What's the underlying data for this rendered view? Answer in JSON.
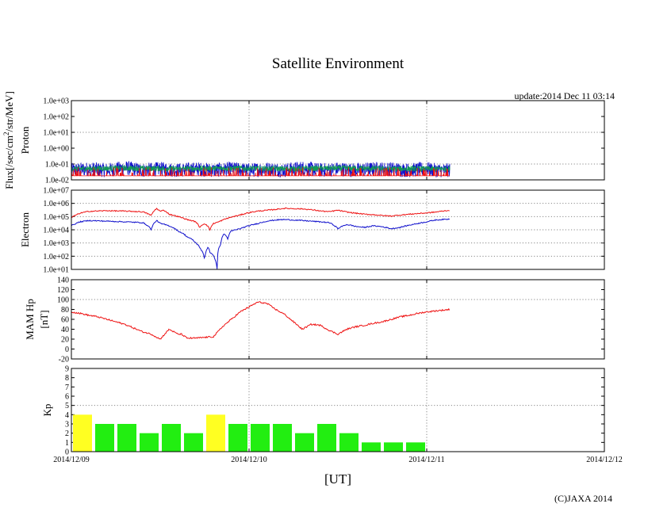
{
  "title": "Satellite Environment",
  "update_text": "update:2014 Dec 11 03:14",
  "copyright": "(C)JAXA 2014",
  "x_axis_title": "[UT]",
  "x_ticks": [
    "2014/12/09",
    "2014/12/10",
    "2014/12/11",
    "2014/12/12"
  ],
  "colors": {
    "red": "#ee1111",
    "blue": "#1111cc",
    "green": "#119955",
    "kp_yellow": "#ffff22",
    "kp_green": "#22ee11"
  },
  "chart_data": [
    {
      "type": "line",
      "panel": "proton",
      "ylabel_lines": [
        "Flux[/sec/cm²/str/MeV]",
        "Proton"
      ],
      "yscale": "log",
      "ylim": [
        0.01,
        1000
      ],
      "y_ticks": [
        "1.0e-02",
        "1.0e-01",
        "1.0e+00",
        "1.0e+01",
        "1.0e+02",
        "1.0e+03"
      ],
      "x_unit": "days since 2014/12/09 00:00 UT",
      "xlim": [
        0,
        3
      ],
      "series": [
        {
          "name": "proton-blue",
          "color": "blue",
          "x": [
            0,
            0.1,
            0.2,
            0.3,
            0.4,
            0.5,
            0.6,
            0.7,
            0.8,
            0.9,
            1.0,
            1.1,
            1.2,
            1.3,
            1.4,
            1.5,
            1.6,
            1.7,
            1.8,
            1.9,
            2.0,
            2.05,
            2.13
          ],
          "values": [
            0.05,
            0.06,
            0.05,
            0.07,
            0.05,
            0.06,
            0.05,
            0.06,
            0.05,
            0.06,
            0.05,
            0.06,
            0.05,
            0.07,
            0.05,
            0.06,
            0.05,
            0.06,
            0.06,
            0.05,
            0.06,
            0.05,
            0.05
          ]
        },
        {
          "name": "proton-green",
          "color": "green",
          "x": [
            0,
            0.3,
            0.6,
            0.9,
            1.2,
            1.5,
            1.8,
            2.13
          ],
          "values": [
            0.05,
            0.055,
            0.05,
            0.055,
            0.05,
            0.055,
            0.05,
            0.05
          ]
        },
        {
          "name": "proton-red",
          "color": "red",
          "x": [
            0,
            0.5,
            1.0,
            1.5,
            2.0,
            2.13
          ],
          "values": [
            0.02,
            0.02,
            0.02,
            0.02,
            0.02,
            0.02
          ]
        }
      ]
    },
    {
      "type": "line",
      "panel": "electron",
      "ylabel_lines": [
        "Electron"
      ],
      "yscale": "log",
      "ylim": [
        10,
        10000000
      ],
      "y_ticks": [
        "1.0e+01",
        "1.0e+02",
        "1.0e+03",
        "1.0e+04",
        "1.0e+05",
        "1.0e+06",
        "1.0e+07"
      ],
      "x_unit": "days since 2014/12/09 00:00 UT",
      "xlim": [
        0,
        3
      ],
      "series": [
        {
          "name": "electron-red",
          "color": "red",
          "x": [
            0,
            0.05,
            0.1,
            0.2,
            0.3,
            0.4,
            0.45,
            0.48,
            0.5,
            0.52,
            0.55,
            0.6,
            0.65,
            0.7,
            0.72,
            0.75,
            0.78,
            0.8,
            0.83,
            0.86,
            0.9,
            0.95,
            1.0,
            1.05,
            1.1,
            1.15,
            1.2,
            1.25,
            1.3,
            1.35,
            1.4,
            1.45,
            1.5,
            1.55,
            1.6,
            1.65,
            1.7,
            1.75,
            1.8,
            1.85,
            1.9,
            1.95,
            2.0,
            2.05,
            2.13
          ],
          "values": [
            80000,
            180000,
            250000,
            280000,
            260000,
            230000,
            120000,
            400000,
            250000,
            300000,
            150000,
            100000,
            60000,
            40000,
            15000,
            30000,
            10000,
            30000,
            40000,
            60000,
            90000,
            130000,
            200000,
            260000,
            300000,
            350000,
            420000,
            400000,
            380000,
            330000,
            270000,
            230000,
            300000,
            220000,
            180000,
            150000,
            140000,
            120000,
            110000,
            130000,
            150000,
            170000,
            190000,
            220000,
            300000
          ]
        },
        {
          "name": "electron-blue",
          "color": "blue",
          "x": [
            0,
            0.05,
            0.1,
            0.2,
            0.3,
            0.4,
            0.45,
            0.48,
            0.5,
            0.55,
            0.6,
            0.65,
            0.7,
            0.73,
            0.75,
            0.77,
            0.78,
            0.8,
            0.82,
            0.84,
            0.86,
            0.88,
            0.9,
            0.95,
            1.0,
            1.05,
            1.1,
            1.15,
            1.2,
            1.25,
            1.3,
            1.35,
            1.4,
            1.45,
            1.5,
            1.55,
            1.6,
            1.65,
            1.7,
            1.75,
            1.8,
            1.85,
            1.9,
            1.95,
            2.0,
            2.05,
            2.13
          ],
          "values": [
            20000,
            40000,
            50000,
            45000,
            40000,
            35000,
            10000,
            50000,
            30000,
            20000,
            8000,
            3000,
            1000,
            300,
            50,
            500,
            200,
            100,
            10,
            800,
            5000,
            2000,
            8000,
            12000,
            20000,
            30000,
            45000,
            55000,
            60000,
            55000,
            50000,
            45000,
            40000,
            35000,
            12000,
            25000,
            18000,
            15000,
            20000,
            17000,
            12000,
            15000,
            22000,
            30000,
            40000,
            55000,
            65000
          ]
        }
      ]
    },
    {
      "type": "line",
      "panel": "mam-hp",
      "ylabel_lines": [
        "MAM Hp",
        "[nT]"
      ],
      "yscale": "linear",
      "ylim": [
        -20,
        140
      ],
      "y_ticks": [
        "-20",
        "0",
        "20",
        "40",
        "60",
        "80",
        "100",
        "120",
        "140"
      ],
      "x_unit": "days since 2014/12/09 00:00 UT",
      "xlim": [
        0,
        3
      ],
      "series": [
        {
          "name": "hp-red",
          "color": "red",
          "x": [
            0,
            0.05,
            0.1,
            0.15,
            0.2,
            0.3,
            0.4,
            0.45,
            0.5,
            0.55,
            0.6,
            0.62,
            0.65,
            0.7,
            0.8,
            0.85,
            0.9,
            0.95,
            1.0,
            1.05,
            1.1,
            1.15,
            1.2,
            1.25,
            1.3,
            1.35,
            1.4,
            1.45,
            1.5,
            1.55,
            1.6,
            1.65,
            1.7,
            1.75,
            1.8,
            1.85,
            1.9,
            1.95,
            2.0,
            2.05,
            2.13
          ],
          "values": [
            75,
            72,
            68,
            65,
            60,
            50,
            35,
            30,
            20,
            40,
            30,
            30,
            22,
            22,
            25,
            45,
            60,
            75,
            85,
            95,
            92,
            80,
            70,
            55,
            40,
            50,
            48,
            38,
            30,
            40,
            45,
            48,
            52,
            55,
            60,
            65,
            68,
            72,
            75,
            77,
            80
          ]
        }
      ]
    },
    {
      "type": "bar",
      "panel": "kp",
      "ylabel_lines": [
        "Kp"
      ],
      "ylim": [
        0,
        9
      ],
      "y_ticks": [
        "0",
        "1",
        "2",
        "3",
        "4",
        "5",
        "6",
        "7",
        "8",
        "9"
      ],
      "bar_width_hours": 3,
      "start_hours": [
        0,
        3,
        6,
        9,
        12,
        15,
        18,
        21,
        24,
        27,
        30,
        33,
        36,
        39,
        42,
        45,
        48
      ],
      "values": [
        4,
        3,
        3,
        2,
        3,
        2,
        4,
        3,
        3,
        3,
        2,
        3,
        2,
        1,
        1,
        1,
        0
      ],
      "colors": [
        "kp_yellow",
        "kp_green",
        "kp_green",
        "kp_green",
        "kp_green",
        "kp_green",
        "kp_yellow",
        "kp_green",
        "kp_green",
        "kp_green",
        "kp_green",
        "kp_green",
        "kp_green",
        "kp_green",
        "kp_green",
        "kp_green",
        "kp_green"
      ],
      "threshold": 5
    }
  ]
}
